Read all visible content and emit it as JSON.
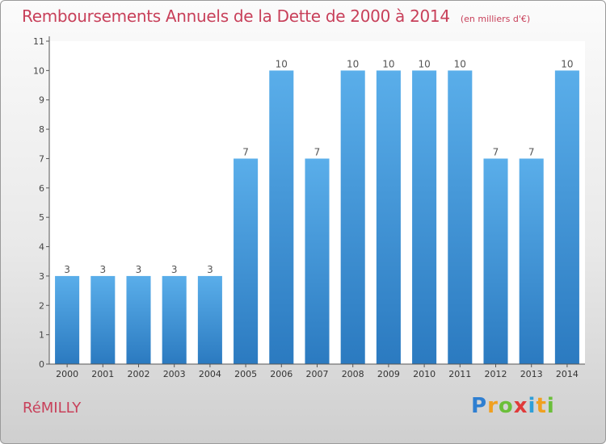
{
  "chart_data": {
    "type": "bar",
    "title": "Remboursements Annuels de la Dette de 2000 à 2014",
    "subtitle": "(en milliers d'€)",
    "categories": [
      "2000",
      "2001",
      "2002",
      "2003",
      "2004",
      "2005",
      "2006",
      "2007",
      "2008",
      "2009",
      "2010",
      "2011",
      "2012",
      "2013",
      "2014"
    ],
    "values": [
      3,
      3,
      3,
      3,
      3,
      7,
      10,
      7,
      10,
      10,
      10,
      10,
      7,
      7,
      10
    ],
    "data_labels": [
      "3",
      "3",
      "3",
      "3",
      "3",
      "7",
      "10",
      "7",
      "10",
      "10",
      "10",
      "10",
      "7",
      "7",
      "10"
    ],
    "yticks": [
      "0",
      "1",
      "2",
      "3",
      "4",
      "5",
      "6",
      "7",
      "8",
      "9",
      "10",
      "11"
    ],
    "ylim": [
      0,
      11
    ],
    "grid": false,
    "bar_color": "#3a8fd4",
    "bar_color_top": "#5aaeea",
    "label_color": "#555555"
  },
  "footer": {
    "commune": "RéMILLY",
    "brand_letters": [
      "P",
      "r",
      "o",
      "x",
      "i",
      "t",
      "i"
    ],
    "brand_colors": [
      "#2f7fd1",
      "#f0a020",
      "#6bbf3a",
      "#e03a3a",
      "#2f9fd8",
      "#f0a020",
      "#6bbf3a"
    ]
  },
  "colors": {
    "title": "#c8405a"
  }
}
